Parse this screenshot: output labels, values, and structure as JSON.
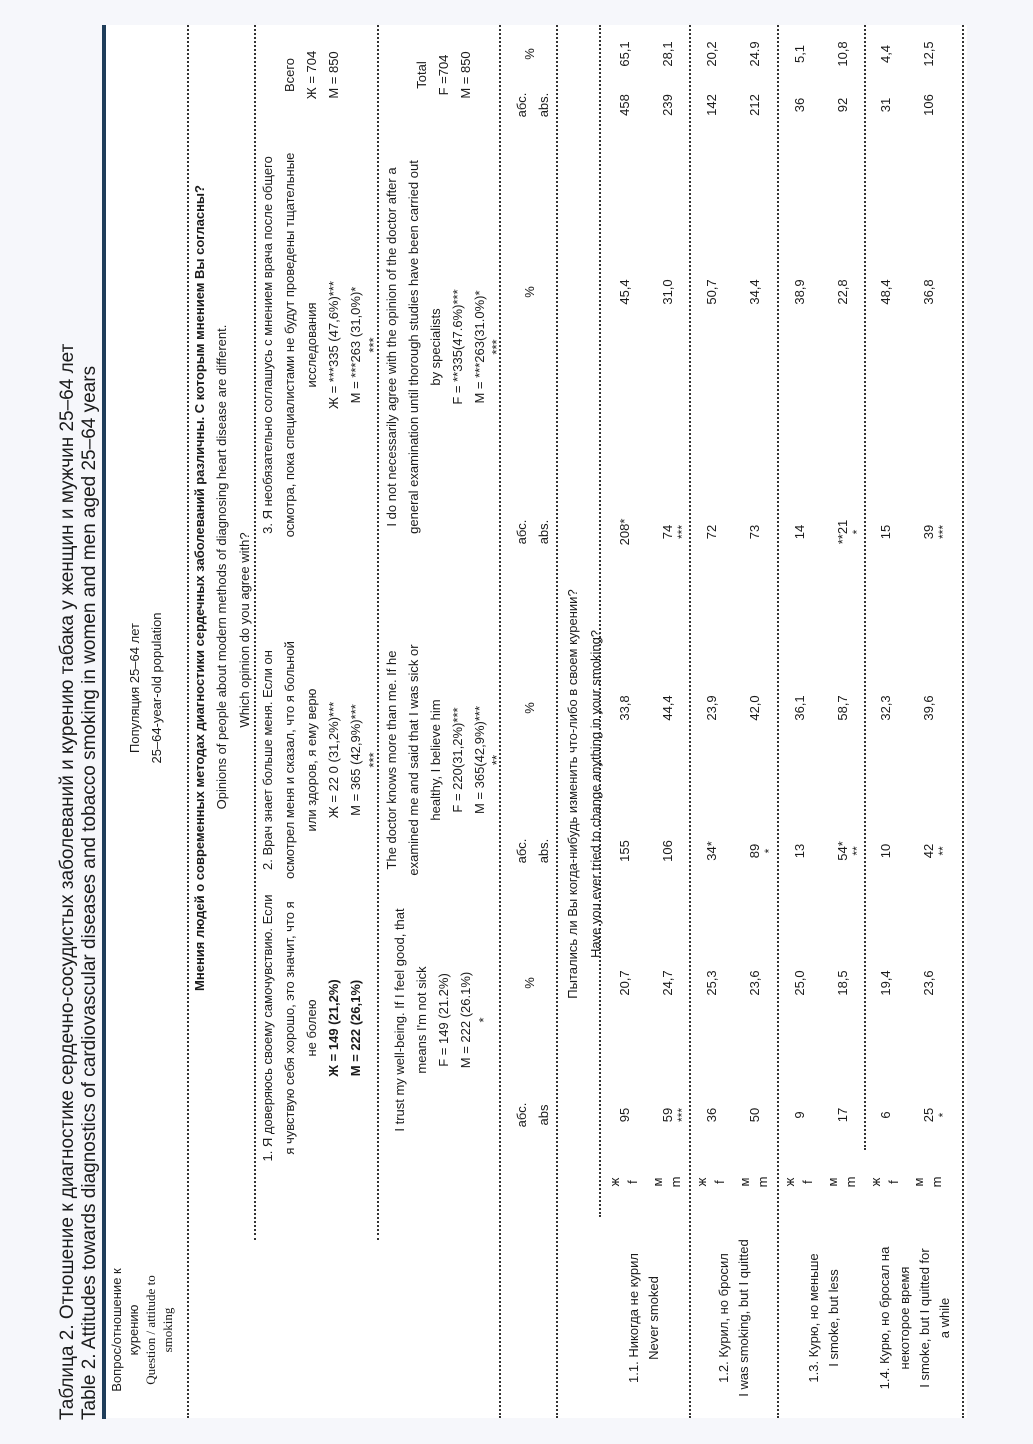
{
  "title": {
    "ru": "Таблица 2. Отношение к диагностике сердечно-сосудистых заболеваний и курению табака у женщин и мужчин 25–64 лет",
    "en": "Table 2. Attitudes towards diagnostics of cardiovascular diseases and tobacco smoking in women and men aged 25–64 years"
  },
  "header": {
    "question_ru": [
      "Вопрос/отношение к",
      "курению"
    ],
    "question_en": [
      "Question / attitude to",
      "smoking"
    ],
    "population_ru": "Популяция 25–64 лет",
    "population_en": "25–64-year-old population"
  },
  "opinions": {
    "title_ru": "Мнения людей о современных методах диагностики сердечных заболеваний различны. С которым мнением Вы согласны?",
    "title_en": "Opinions of people about modern methods of diagnosing heart disease are different.",
    "question_en": "Which opinion do you agree with?"
  },
  "options": [
    {
      "ru": [
        "1. Я доверяюсь своему самочувствию. Если",
        "я чувствую себя хорошо, это значит, что я",
        "не болею",
        "Ж = 149 (21,2%)",
        "М = 222 (26,1%)"
      ],
      "en": [
        "I trust my well-being. If I feel good, that",
        "means I'm not sick",
        "F = 149 (21.2%)",
        "M = 222 (26.1%)",
        "*"
      ]
    },
    {
      "ru": [
        "2. Врач знает больше меня. Если он",
        "осмотрел меня и сказал, что я больной",
        "или здоров, я ему верю",
        "Ж = 22 0 (31,2%)***",
        "М = 365 (42,9%)***",
        "***"
      ],
      "en": [
        "The doctor knows more than me. If he",
        "examined me and said that I was sick or",
        "healthy, I believe him",
        "F = 220(31,2%)***",
        "M = 365(42,9%)***",
        "**"
      ]
    },
    {
      "ru": [
        "3. Я необязательно соглашусь с мнением врача после общего",
        "осмотра, пока специалистами не будут проведены тщательные",
        "исследования",
        "Ж = ***335 (47,6%)***",
        "М = ***263 (31,0%)*",
        "***"
      ],
      "en": [
        "I do not necessarily agree with the opinion of the doctor after a",
        "general examination until thorough studies have been carried out",
        "by specialists",
        "F = **335(47.6%)***",
        "M = ***263(31.0%)*",
        "***"
      ]
    }
  ],
  "total": {
    "ru": [
      "Всего",
      "Ж = 704",
      "М = 850"
    ],
    "en": [
      "Total",
      "F =704",
      "M = 850"
    ]
  },
  "col_headers": [
    {
      "ru": "абс.",
      "en": "abs"
    },
    {
      "ru": "%",
      "en": ""
    },
    {
      "ru": "абс.",
      "en": "abs."
    },
    {
      "ru": "%",
      "en": ""
    },
    {
      "ru": "абс.",
      "en": "abs."
    },
    {
      "ru": "%",
      "en": ""
    },
    {
      "ru": "абс.",
      "en": "abs."
    },
    {
      "ru": "%",
      "en": ""
    }
  ],
  "smoking_question": {
    "ru": "Пытались ли Вы когда-нибудь изменить что-либо в своем курении?",
    "en": "Have you ever tried to change anything in your smoking?"
  },
  "rows": [
    {
      "label": [
        "1.1. Никогда не курил",
        "Never smoked"
      ],
      "f": {
        "sex": [
          "ж",
          "f"
        ],
        "cells": [
          {
            "v": "95"
          },
          {
            "v": "20,7"
          },
          {
            "v": "155"
          },
          {
            "v": "33,8"
          },
          {
            "v": "208*"
          },
          {
            "v": "45,4"
          },
          {
            "v": "458"
          },
          {
            "v": "65,1"
          }
        ]
      },
      "m": {
        "sex": [
          "м",
          "m"
        ],
        "cells": [
          {
            "v": "59",
            "s": "***"
          },
          {
            "v": "24,7"
          },
          {
            "v": "106"
          },
          {
            "v": "44,4"
          },
          {
            "v": "74",
            "s": "***"
          },
          {
            "v": "31,0"
          },
          {
            "v": "239"
          },
          {
            "v": "28,1"
          }
        ]
      }
    },
    {
      "label": [
        "1.2. Курил, но бросил",
        "I was smoking, but I quitted"
      ],
      "f": {
        "sex": [
          "ж",
          "f"
        ],
        "cells": [
          {
            "v": "36"
          },
          {
            "v": "25,3"
          },
          {
            "v": "34*"
          },
          {
            "v": "23,9"
          },
          {
            "v": "72"
          },
          {
            "v": "50,7"
          },
          {
            "v": "142"
          },
          {
            "v": "20,2"
          }
        ]
      },
      "m": {
        "sex": [
          "м",
          "m"
        ],
        "cells": [
          {
            "v": "50"
          },
          {
            "v": "23,6"
          },
          {
            "v": "89",
            "s": "*"
          },
          {
            "v": "42,0"
          },
          {
            "v": "73"
          },
          {
            "v": "34,4"
          },
          {
            "v": "212"
          },
          {
            "v": "24.9"
          }
        ]
      }
    },
    {
      "label": [
        "1.3. Курю, но меньше",
        "I smoke, but less"
      ],
      "f": {
        "sex": [
          "ж",
          "f"
        ],
        "cells": [
          {
            "v": "9"
          },
          {
            "v": "25,0"
          },
          {
            "v": "13"
          },
          {
            "v": "36,1"
          },
          {
            "v": "14"
          },
          {
            "v": "38,9"
          },
          {
            "v": "36"
          },
          {
            "v": "5,1"
          }
        ]
      },
      "m": {
        "sex": [
          "м",
          "m"
        ],
        "cells": [
          {
            "v": "17"
          },
          {
            "v": "18,5"
          },
          {
            "v": "54*",
            "s": "**"
          },
          {
            "v": "58,7"
          },
          {
            "v": "**21",
            "s": "*"
          },
          {
            "v": "22,8"
          },
          {
            "v": "92"
          },
          {
            "v": "10,8"
          }
        ]
      }
    },
    {
      "label": [
        "1.4. Курю, но бросал на",
        "некоторое время",
        "I smoke, but I quitted for",
        "a while"
      ],
      "f": {
        "sex": [
          "ж",
          "f"
        ],
        "cells": [
          {
            "v": "6"
          },
          {
            "v": "19,4"
          },
          {
            "v": "10"
          },
          {
            "v": "32,3"
          },
          {
            "v": "15"
          },
          {
            "v": "48,4"
          },
          {
            "v": "31"
          },
          {
            "v": "4,4"
          }
        ]
      },
      "m": {
        "sex": [
          "м",
          "m"
        ],
        "cells": [
          {
            "v": "25",
            "s": "*"
          },
          {
            "v": "23,6"
          },
          {
            "v": "42",
            "s": "**"
          },
          {
            "v": "39,6"
          },
          {
            "v": "39",
            "s": "***"
          },
          {
            "v": "36,8"
          },
          {
            "v": "106"
          },
          {
            "v": "12,5"
          }
        ]
      }
    }
  ],
  "colors": {
    "accent_bar": "#1f3d5a",
    "text": "#1b1b1b"
  }
}
